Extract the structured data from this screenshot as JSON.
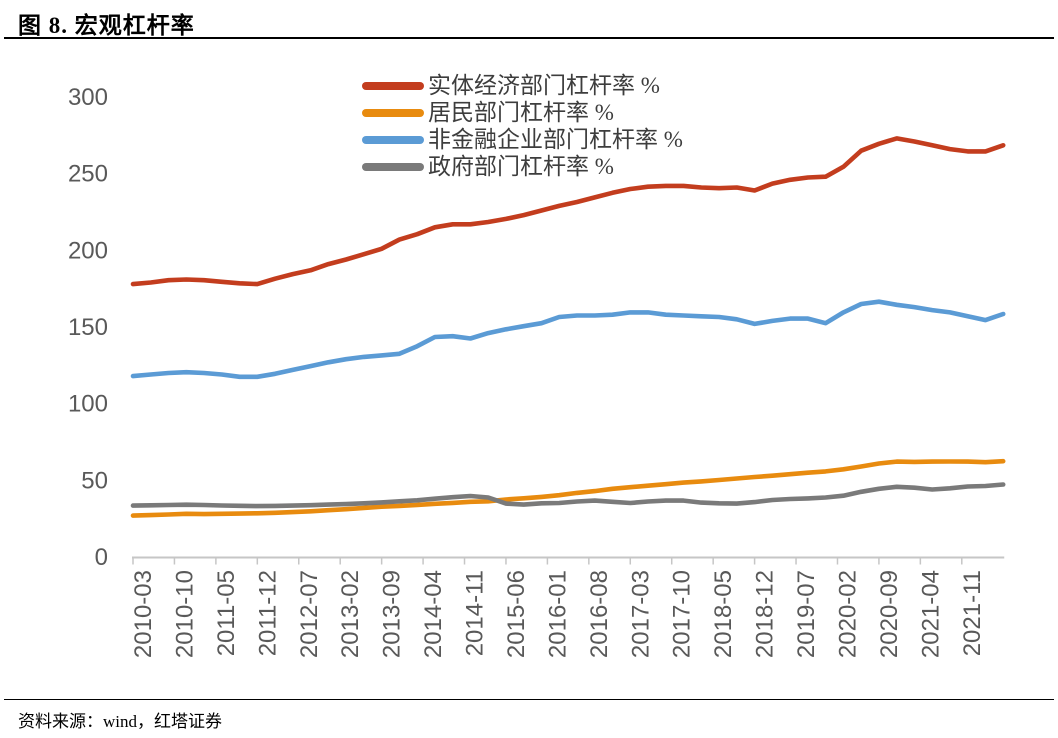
{
  "header": {
    "title": "图 8. 宏观杠杆率"
  },
  "footer": {
    "source_label": "资料来源：wind，红塔证券"
  },
  "chart_data": {
    "type": "line",
    "title": "图 8. 宏观杠杆率",
    "grid": false,
    "legend_position": "top-left-inside",
    "axis_color": "#c6c6c6",
    "label_color": "#595959",
    "ylim": [
      0,
      300
    ],
    "y_ticks": [
      0,
      50,
      100,
      150,
      200,
      250,
      300
    ],
    "x_ticks": {
      "months": [
        0,
        7,
        14,
        21,
        28,
        35,
        42,
        49,
        56,
        63,
        70,
        77,
        84,
        91,
        98,
        105,
        112,
        119,
        126,
        133,
        140
      ],
      "labels": [
        "2010-03",
        "2010-10",
        "2011-05",
        "2011-12",
        "2012-07",
        "2013-02",
        "2013-09",
        "2014-04",
        "2014-11",
        "2015-06",
        "2016-01",
        "2016-08",
        "2017-03",
        "2017-10",
        "2018-05",
        "2018-12",
        "2019-07",
        "2020-02",
        "2020-09",
        "2021-04",
        "2021-11"
      ]
    },
    "months_domain": [
      0,
      147
    ],
    "months": [
      0,
      3,
      6,
      9,
      12,
      15,
      18,
      21,
      24,
      27,
      30,
      33,
      36,
      39,
      42,
      45,
      48,
      51,
      54,
      57,
      60,
      63,
      66,
      69,
      72,
      75,
      78,
      81,
      84,
      87,
      90,
      93,
      96,
      99,
      102,
      105,
      108,
      111,
      114,
      117,
      120,
      123,
      126,
      129,
      132,
      135,
      138,
      141,
      144,
      147
    ],
    "series": [
      {
        "name": "实体经济部门杠杆率 %",
        "color": "#c33d1e",
        "values": [
          178,
          179,
          180.5,
          181,
          180.5,
          179.5,
          178.5,
          178,
          181.5,
          184.5,
          187,
          191,
          194,
          197.5,
          201,
          207,
          210.5,
          215,
          217,
          217,
          218.5,
          220.5,
          223,
          226,
          229,
          231.5,
          234.5,
          237.5,
          240,
          241.5,
          242,
          242,
          241,
          240.5,
          241,
          239,
          243.5,
          246,
          247.5,
          248,
          254.5,
          265,
          269.5,
          273,
          271,
          268.5,
          266,
          264.5,
          264.5,
          268.5
        ]
      },
      {
        "name": "居民部门杠杆率 %",
        "color": "#e88b0f",
        "values": [
          27,
          27.3,
          27.7,
          28.2,
          28,
          28.2,
          28.3,
          28.5,
          28.8,
          29.3,
          29.8,
          30.5,
          31.2,
          32,
          32.8,
          33.3,
          34,
          34.7,
          35.3,
          36,
          36.3,
          37.5,
          38.3,
          39.2,
          40.3,
          41.8,
          43,
          44.5,
          45.5,
          46.5,
          47.5,
          48.5,
          49.3,
          50.2,
          51.2,
          52.2,
          53,
          54,
          55,
          55.8,
          57.2,
          59,
          61,
          62.2,
          62,
          62.2,
          62.3,
          62.2,
          61.8,
          62.5
        ]
      },
      {
        "name": "非金融企业部门杠杆率 %",
        "color": "#5b9bd5",
        "values": [
          118,
          119,
          120,
          120.5,
          120,
          119,
          117.5,
          117.5,
          119.5,
          122,
          124.5,
          127,
          129,
          130.5,
          131.5,
          132.5,
          137.5,
          143.5,
          144,
          142.5,
          146,
          148.5,
          150.5,
          152.5,
          156.5,
          157.5,
          157.5,
          158,
          159.5,
          159.5,
          158,
          157.5,
          157,
          156.5,
          155,
          152,
          154,
          155.5,
          155.5,
          152.5,
          159.5,
          165,
          166.5,
          164.5,
          163,
          161,
          159.5,
          157,
          154.5,
          158.5
        ]
      },
      {
        "name": "政府部门杠杆率 %",
        "color": "#7a7a7a",
        "values": [
          33.5,
          33.7,
          33.9,
          34.1,
          33.9,
          33.6,
          33.4,
          33.2,
          33.3,
          33.5,
          33.8,
          34.2,
          34.5,
          35,
          35.6,
          36.3,
          37,
          38,
          39,
          39.8,
          38.8,
          34.8,
          34.2,
          35,
          35.2,
          36.2,
          36.8,
          36,
          35.2,
          36.2,
          36.8,
          36.8,
          35.5,
          35,
          34.8,
          35.8,
          37.2,
          37.8,
          38.2,
          38.8,
          40,
          42.5,
          44.5,
          45.8,
          45.2,
          44,
          44.8,
          46,
          46.3,
          47.3
        ]
      }
    ]
  }
}
